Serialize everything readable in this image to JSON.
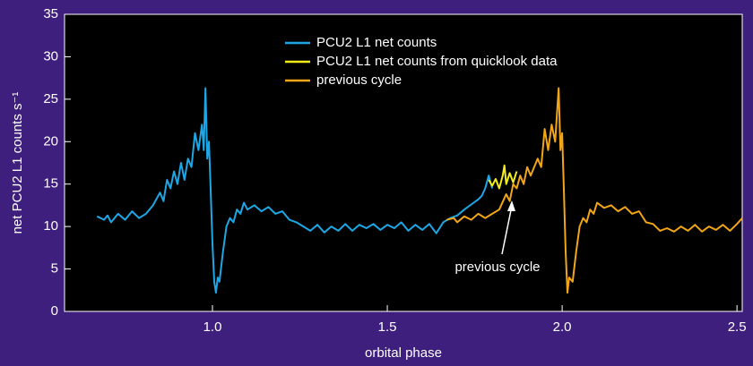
{
  "chart_data": {
    "type": "line",
    "xlabel": "orbital phase",
    "ylabel": "net PCU2 L1 counts s⁻¹",
    "annotation": "previous cycle",
    "xlim": [
      0.577,
      2.515
    ],
    "ylim": [
      0,
      35
    ],
    "xticks": [
      {
        "value": 1,
        "label": "1.0"
      },
      1.5,
      {
        "value": 2,
        "label": "2.0"
      },
      2.5
    ],
    "yticks": [
      0,
      5,
      10,
      15,
      20,
      25,
      30,
      35
    ],
    "legend": "top",
    "series": [
      {
        "name": "PCU2 L1 net counts",
        "color": "#1ea7e6",
        "x": [
          0.67,
          0.69,
          0.7,
          0.71,
          0.73,
          0.75,
          0.77,
          0.79,
          0.81,
          0.83,
          0.85,
          0.86,
          0.87,
          0.88,
          0.89,
          0.9,
          0.91,
          0.92,
          0.93,
          0.94,
          0.95,
          0.96,
          0.97,
          0.975,
          0.98,
          0.985,
          0.99,
          0.995,
          1.0,
          1.005,
          1.01,
          1.015,
          1.02,
          1.03,
          1.04,
          1.05,
          1.06,
          1.07,
          1.08,
          1.09,
          1.1,
          1.12,
          1.14,
          1.16,
          1.18,
          1.2,
          1.22,
          1.24,
          1.26,
          1.28,
          1.3,
          1.32,
          1.34,
          1.36,
          1.38,
          1.4,
          1.42,
          1.44,
          1.46,
          1.48,
          1.5,
          1.52,
          1.54,
          1.56,
          1.58,
          1.6,
          1.62,
          1.64,
          1.66,
          1.68,
          1.7,
          1.72,
          1.74,
          1.76,
          1.77,
          1.78,
          1.79,
          1.8
        ],
        "values": [
          11.2,
          10.8,
          11.3,
          10.5,
          11.5,
          10.8,
          11.8,
          11.0,
          11.5,
          12.5,
          14.0,
          13.0,
          15.5,
          14.5,
          16.5,
          15.0,
          17.5,
          15.5,
          18.0,
          17.0,
          21.0,
          19.0,
          22.0,
          19.0,
          26.3,
          18.0,
          20.0,
          14.0,
          8.0,
          3.5,
          2.2,
          4.0,
          3.5,
          7.0,
          10.0,
          11.0,
          10.5,
          12.0,
          11.5,
          12.8,
          12.0,
          12.5,
          11.8,
          12.3,
          11.5,
          11.8,
          10.8,
          10.5,
          10.0,
          9.5,
          10.2,
          9.3,
          10.0,
          9.5,
          10.3,
          9.5,
          10.2,
          9.8,
          10.3,
          9.6,
          10.2,
          9.8,
          10.5,
          9.5,
          10.2,
          9.6,
          10.3,
          9.2,
          10.5,
          11.0,
          11.3,
          12.0,
          12.6,
          13.2,
          13.6,
          14.5,
          16.0,
          14.5
        ]
      },
      {
        "name": "PCU2 L1 net counts from quicklook data",
        "color": "#f2ec1a",
        "x": [
          1.79,
          1.8,
          1.81,
          1.82,
          1.83,
          1.835,
          1.84,
          1.85,
          1.86,
          1.87
        ],
        "values": [
          15.5,
          14.8,
          15.6,
          14.5,
          16.0,
          17.2,
          15.0,
          16.3,
          15.2,
          16.5
        ]
      },
      {
        "name": "previous cycle",
        "color": "#f2a516",
        "x": [
          1.67,
          1.69,
          1.7,
          1.72,
          1.74,
          1.76,
          1.78,
          1.8,
          1.82,
          1.84,
          1.85,
          1.86,
          1.87,
          1.88,
          1.89,
          1.9,
          1.91,
          1.92,
          1.93,
          1.94,
          1.95,
          1.96,
          1.97,
          1.98,
          1.99,
          1.995,
          2.0,
          2.005,
          2.01,
          2.015,
          2.02,
          2.03,
          2.04,
          2.05,
          2.06,
          2.07,
          2.08,
          2.09,
          2.1,
          2.12,
          2.14,
          2.16,
          2.18,
          2.2,
          2.22,
          2.24,
          2.26,
          2.28,
          2.3,
          2.32,
          2.34,
          2.36,
          2.38,
          2.4,
          2.42,
          2.44,
          2.46,
          2.48,
          2.5,
          2.515
        ],
        "values": [
          10.8,
          11.0,
          10.5,
          11.2,
          10.8,
          11.5,
          11.0,
          11.5,
          12.0,
          13.8,
          13.0,
          15.0,
          14.5,
          16.0,
          15.0,
          17.0,
          16.0,
          17.0,
          18.0,
          17.0,
          21.5,
          19.0,
          22.0,
          20.0,
          26.3,
          19.0,
          21.0,
          14.0,
          7.0,
          2.2,
          4.0,
          3.5,
          7.0,
          10.0,
          11.0,
          10.5,
          12.0,
          11.5,
          12.8,
          12.2,
          12.5,
          11.8,
          12.3,
          11.5,
          11.8,
          10.5,
          10.3,
          9.5,
          9.8,
          9.4,
          10.0,
          9.5,
          10.2,
          9.4,
          10.0,
          9.6,
          10.2,
          9.5,
          10.3,
          11.0
        ]
      }
    ]
  }
}
